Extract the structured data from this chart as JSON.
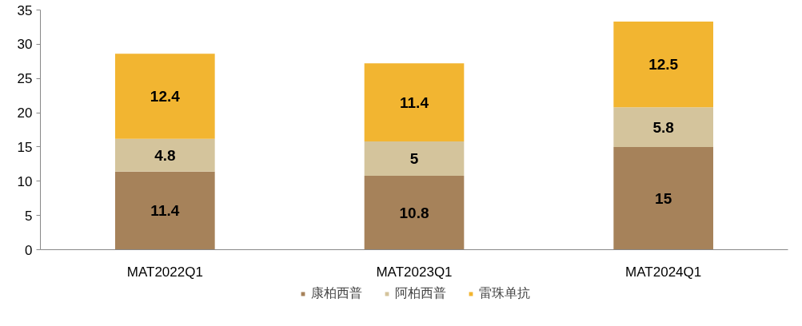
{
  "chart_data": {
    "type": "bar",
    "stacked": true,
    "categories": [
      "MAT2022Q1",
      "MAT2023Q1",
      "MAT2024Q1"
    ],
    "series": [
      {
        "name": "康柏西普",
        "color": "#a6825a",
        "values": [
          11.4,
          10.8,
          15
        ]
      },
      {
        "name": "阿柏西普",
        "color": "#d4c49c",
        "values": [
          4.8,
          5,
          5.8
        ]
      },
      {
        "name": "雷珠单抗",
        "color": "#f2b531",
        "values": [
          12.4,
          11.4,
          12.5
        ]
      }
    ],
    "ylim": [
      0,
      35
    ],
    "yticks": [
      0,
      5,
      10,
      15,
      20,
      25,
      30,
      35
    ],
    "grid": false,
    "legend": "bottom",
    "data_labels": true
  }
}
